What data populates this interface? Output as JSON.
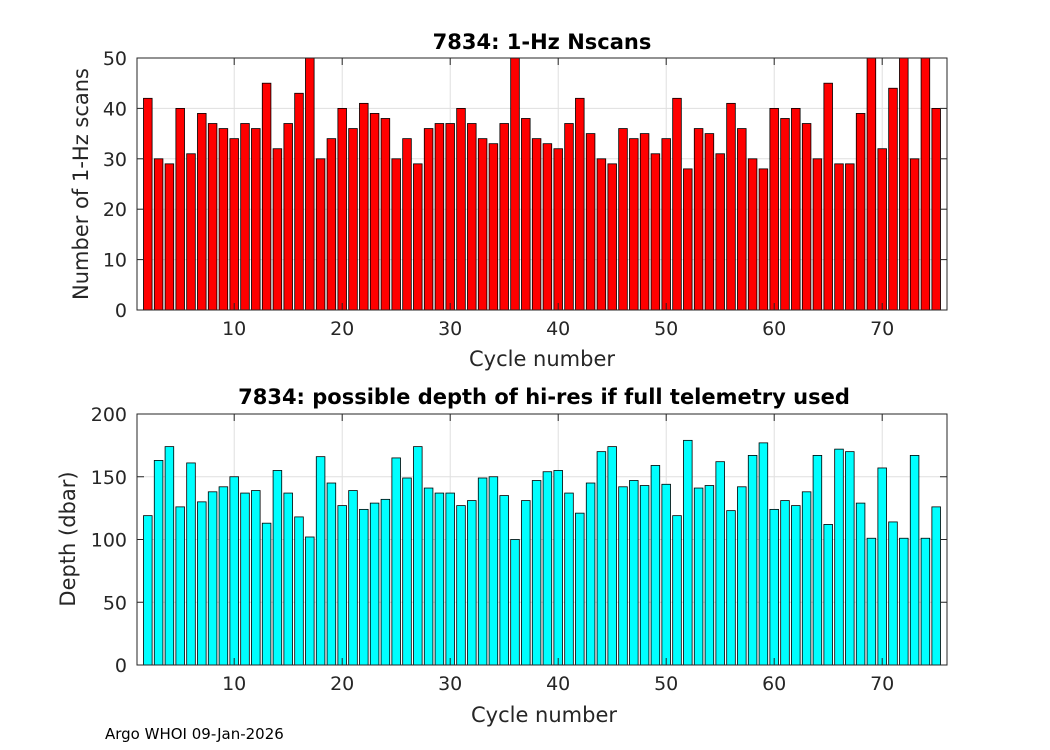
{
  "footer": "Argo WHOI 09-Jan-2026",
  "chart_data": [
    {
      "type": "bar",
      "title": "7834: 1-Hz Nscans",
      "xlabel": "Cycle number",
      "ylabel": "Number of 1-Hz scans",
      "xlim": [
        1,
        76
      ],
      "ylim": [
        0,
        50
      ],
      "xticks": [
        10,
        20,
        30,
        40,
        50,
        60,
        70
      ],
      "yticks": [
        0,
        10,
        20,
        30,
        40,
        50
      ],
      "grid": true,
      "bar_color": "#ff0000",
      "x": [
        2,
        3,
        4,
        5,
        6,
        7,
        8,
        9,
        10,
        11,
        12,
        13,
        14,
        15,
        16,
        17,
        18,
        19,
        20,
        21,
        22,
        23,
        24,
        25,
        26,
        27,
        28,
        29,
        30,
        31,
        32,
        33,
        34,
        35,
        36,
        37,
        38,
        39,
        40,
        41,
        42,
        43,
        44,
        45,
        46,
        47,
        48,
        49,
        50,
        51,
        52,
        53,
        54,
        55,
        56,
        57,
        58,
        59,
        60,
        61,
        62,
        63,
        64,
        65,
        66,
        67,
        68,
        69,
        70,
        71,
        72,
        73,
        74,
        75
      ],
      "values": [
        42,
        30,
        29,
        40,
        31,
        39,
        37,
        36,
        34,
        37,
        36,
        45,
        32,
        37,
        43,
        50,
        30,
        34,
        40,
        36,
        41,
        39,
        38,
        30,
        34,
        29,
        36,
        37,
        37,
        40,
        37,
        34,
        33,
        37,
        50,
        38,
        34,
        33,
        32,
        37,
        42,
        35,
        30,
        29,
        36,
        34,
        35,
        31,
        34,
        42,
        28,
        36,
        35,
        31,
        41,
        36,
        30,
        28,
        40,
        38,
        40,
        37,
        30,
        45,
        29,
        29,
        39,
        50,
        32,
        44,
        50,
        30,
        50,
        40
      ]
    },
    {
      "type": "bar",
      "title": "7834: possible depth of hi-res if full telemetry used",
      "xlabel": "Cycle number",
      "ylabel": "Depth (dbar)",
      "xlim": [
        1,
        76
      ],
      "ylim": [
        0,
        200
      ],
      "xticks": [
        10,
        20,
        30,
        40,
        50,
        60,
        70
      ],
      "yticks": [
        0,
        50,
        100,
        150,
        200
      ],
      "grid": true,
      "bar_color": "#00ffff",
      "x": [
        2,
        3,
        4,
        5,
        6,
        7,
        8,
        9,
        10,
        11,
        12,
        13,
        14,
        15,
        16,
        17,
        18,
        19,
        20,
        21,
        22,
        23,
        24,
        25,
        26,
        27,
        28,
        29,
        30,
        31,
        32,
        33,
        34,
        35,
        36,
        37,
        38,
        39,
        40,
        41,
        42,
        43,
        44,
        45,
        46,
        47,
        48,
        49,
        50,
        51,
        52,
        53,
        54,
        55,
        56,
        57,
        58,
        59,
        60,
        61,
        62,
        63,
        64,
        65,
        66,
        67,
        68,
        69,
        70,
        71,
        72,
        73,
        74,
        75
      ],
      "values": [
        119,
        163,
        174,
        126,
        161,
        130,
        138,
        142,
        150,
        137,
        139,
        113,
        155,
        137,
        118,
        102,
        166,
        145,
        127,
        139,
        124,
        129,
        132,
        165,
        149,
        174,
        141,
        137,
        137,
        127,
        131,
        149,
        150,
        135,
        100,
        131,
        147,
        154,
        155,
        137,
        121,
        145,
        170,
        174,
        142,
        147,
        143,
        159,
        144,
        119,
        179,
        141,
        143,
        162,
        123,
        142,
        167,
        177,
        124,
        131,
        127,
        138,
        167,
        112,
        172,
        170,
        129,
        101,
        157,
        114,
        101,
        167,
        101,
        126
      ]
    }
  ]
}
